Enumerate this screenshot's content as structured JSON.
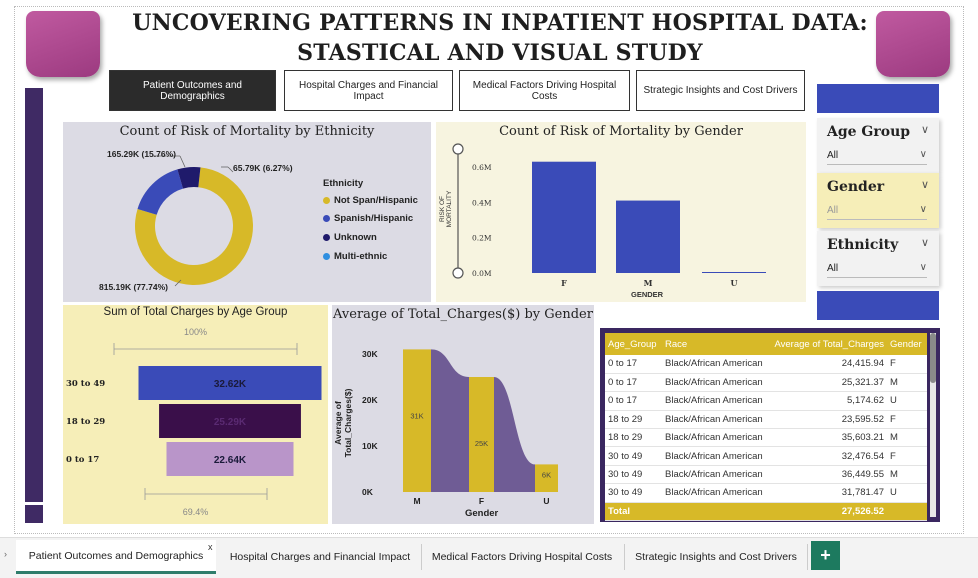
{
  "title_line1": "UNCOVERING PATTERNS IN INPATIENT HOSPITAL DATA:",
  "title_line2": "STASTICAL AND VISUAL STUDY",
  "nav": [
    {
      "label": "Patient Outcomes and Demographics",
      "active": true
    },
    {
      "label": "Hospital Charges and Financial Impact",
      "active": false
    },
    {
      "label": "Medical Factors Driving Hospital Costs",
      "active": false
    },
    {
      "label": "Strategic Insights and Cost Drivers",
      "active": false
    }
  ],
  "colors": {
    "gold": "#d7b928",
    "blue": "#3a4bb8",
    "navy": "#1f1a6b",
    "purple": "#3f2a64",
    "lavender": "#b995c9",
    "accent_green": "#1d7a5f"
  },
  "slicers": [
    {
      "label": "Age Group",
      "value": "All"
    },
    {
      "label": "Gender",
      "value": "All"
    },
    {
      "label": "Ethnicity",
      "value": "All"
    }
  ],
  "chart_data": [
    {
      "type": "pie",
      "title": "Count of Risk of Mortality by Ethnicity",
      "legend_title": "Ethnicity",
      "categories": [
        "Not Span/Hispanic",
        "Spanish/Hispanic",
        "Unknown",
        "Multi-ethnic"
      ],
      "values": [
        815.19,
        165.29,
        65.79,
        0
      ],
      "value_labels": [
        "815.19K (77.74%)",
        "165.29K (15.76%)",
        "65.79K (6.27%)",
        ""
      ],
      "colors": [
        "#d7b928",
        "#3a4bb8",
        "#1f1a6b",
        "#2f8fe0"
      ],
      "legend_position": "right"
    },
    {
      "type": "bar",
      "title": "Count of Risk of Mortality by Gender",
      "xlabel": "GENDER",
      "ylabel": "RISK OF MORTALITY",
      "categories": [
        "F",
        "M",
        "U"
      ],
      "values": [
        0.63,
        0.41,
        0.003
      ],
      "yticks": [
        "0.0M",
        "0.2M",
        "0.4M",
        "0.6M"
      ],
      "ylim": [
        0,
        0.7
      ]
    },
    {
      "type": "bar",
      "title": "Sum of Total Charges by Age Group",
      "categories": [
        "30 to 49",
        "18 to 29",
        "0 to 17"
      ],
      "values": [
        32.62,
        25.29,
        22.64
      ],
      "value_labels": [
        "32.62K",
        "25.29K",
        "22.64K"
      ],
      "colors": [
        "#3a4bb8",
        "#3a0f4a",
        "#b995c9"
      ],
      "top_label": "100%",
      "bottom_label": "69.4%"
    },
    {
      "type": "area",
      "title": "Average of Total_Charges($) by Gender",
      "xlabel": "Gender",
      "ylabel": "Average of Total_Charges($)",
      "categories": [
        "M",
        "F",
        "U"
      ],
      "values": [
        31,
        25,
        6
      ],
      "value_labels": [
        "31K",
        "25K",
        "6K"
      ],
      "yticks": [
        "0K",
        "10K",
        "20K",
        "30K"
      ],
      "ylim": [
        0,
        33
      ]
    },
    {
      "type": "table",
      "columns": [
        "Age_Group",
        "Race",
        "Average of Total_Charges",
        "Gender"
      ],
      "rows": [
        [
          "0 to 17",
          "Black/African American",
          "24,415.94",
          "F"
        ],
        [
          "0 to 17",
          "Black/African American",
          "25,321.37",
          "M"
        ],
        [
          "0 to 17",
          "Black/African American",
          "5,174.62",
          "U"
        ],
        [
          "18 to 29",
          "Black/African American",
          "23,595.52",
          "F"
        ],
        [
          "18 to 29",
          "Black/African American",
          "35,603.21",
          "M"
        ],
        [
          "30 to 49",
          "Black/African American",
          "32,476.54",
          "F"
        ],
        [
          "30 to 49",
          "Black/African American",
          "36,449.55",
          "M"
        ],
        [
          "30 to 49",
          "Black/African American",
          "31,781.47",
          "U"
        ]
      ],
      "total": [
        "Total",
        "",
        "27,526.52",
        ""
      ]
    }
  ],
  "tabs": [
    {
      "label": "Patient Outcomes and Demographics",
      "active": true
    },
    {
      "label": "Hospital Charges and Financial Impact",
      "active": false
    },
    {
      "label": "Medical Factors Driving Hospital Costs",
      "active": false
    },
    {
      "label": "Strategic Insights and Cost Drivers",
      "active": false
    }
  ],
  "tab_close": "x",
  "add_tab": "+"
}
